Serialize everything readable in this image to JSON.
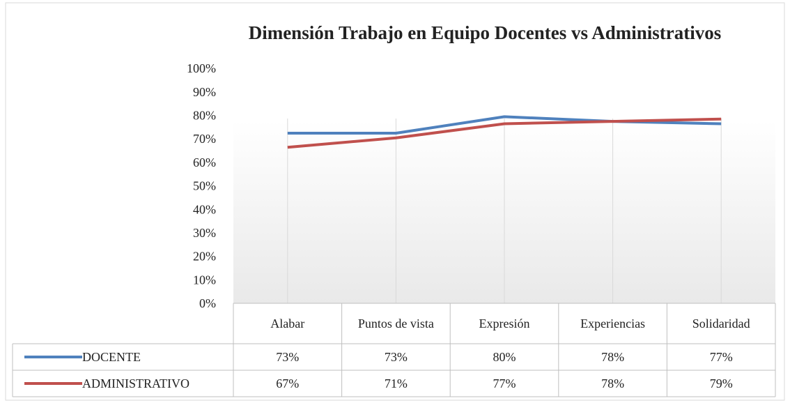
{
  "chart_data": {
    "type": "line",
    "title": "Dimensión Trabajo en Equipo Docentes vs Administrativos",
    "categories": [
      "Alabar",
      "Puntos de vista",
      "Expresión",
      "Experiencias",
      "Solidaridad"
    ],
    "series": [
      {
        "name": "DOCENTE",
        "color": "#4f81bd",
        "values": [
          73,
          73,
          80,
          78,
          77
        ],
        "value_labels": [
          "73%",
          "73%",
          "80%",
          "78%",
          "77%"
        ]
      },
      {
        "name": "ADMINISTRATIVO",
        "color": "#c0504d",
        "values": [
          67,
          71,
          77,
          78,
          79
        ],
        "value_labels": [
          "67%",
          "71%",
          "77%",
          "78%",
          "79%"
        ]
      }
    ],
    "ylim": [
      0,
      100
    ],
    "yticks": [
      {
        "value": 0,
        "label": "0%"
      },
      {
        "value": 10,
        "label": "10%"
      },
      {
        "value": 20,
        "label": "20%"
      },
      {
        "value": 30,
        "label": "30%"
      },
      {
        "value": 40,
        "label": "40%"
      },
      {
        "value": 50,
        "label": "50%"
      },
      {
        "value": 60,
        "label": "60%"
      },
      {
        "value": 70,
        "label": "70%"
      },
      {
        "value": 80,
        "label": "80%"
      },
      {
        "value": 90,
        "label": "90%"
      },
      {
        "value": 100,
        "label": "100%"
      }
    ],
    "grid": true
  }
}
